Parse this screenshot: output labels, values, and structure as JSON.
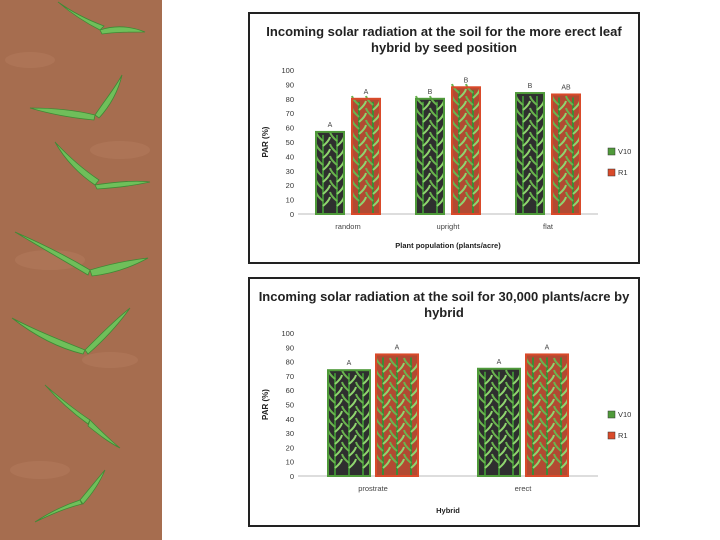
{
  "photo": {
    "description_icon": "corn-seedlings-photo-icon"
  },
  "colors": {
    "V10": "#4f9a3a",
    "R1": "#d94a2a",
    "soil": "#a66d4f",
    "leaf": "#7fc46a"
  },
  "chart_data": [
    {
      "type": "bar",
      "title": "Incoming solar radiation at the soil for the more erect leaf hybrid by seed position",
      "xlabel": "Plant population (plants/acre)",
      "ylabel": "PAR (%)",
      "ylim": [
        0,
        100
      ],
      "yticks": [
        0,
        10,
        20,
        30,
        40,
        50,
        60,
        70,
        80,
        90,
        100
      ],
      "grid": false,
      "legend_position": "right",
      "categories": [
        "random",
        "upright",
        "flat"
      ],
      "series": [
        {
          "name": "V10",
          "values": [
            57,
            80,
            84
          ],
          "letters": [
            "A",
            "B",
            "B"
          ]
        },
        {
          "name": "R1",
          "values": [
            80,
            88,
            83
          ],
          "letters": [
            "A",
            "B",
            "AB"
          ]
        }
      ]
    },
    {
      "type": "bar",
      "title": "Incoming solar radiation at the soil for 30,000 plants/acre by hybrid",
      "xlabel": "Hybrid",
      "ylabel": "PAR (%)",
      "ylim": [
        0,
        100
      ],
      "yticks": [
        0,
        10,
        20,
        30,
        40,
        50,
        60,
        70,
        80,
        90,
        100
      ],
      "grid": false,
      "legend_position": "right",
      "categories": [
        "prostrate",
        "erect"
      ],
      "series": [
        {
          "name": "V10",
          "values": [
            74,
            75
          ],
          "letters": [
            "A",
            "A"
          ]
        },
        {
          "name": "R1",
          "values": [
            85,
            85
          ],
          "letters": [
            "A",
            "A"
          ]
        }
      ]
    }
  ]
}
